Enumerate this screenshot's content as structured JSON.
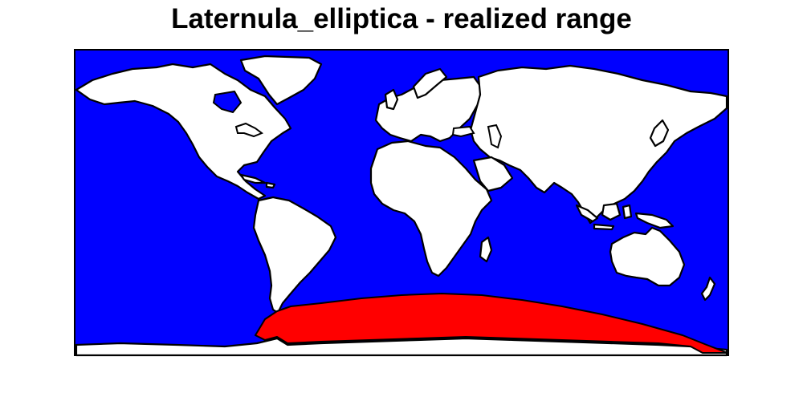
{
  "title": "Laternula_elliptica - realized range",
  "colors": {
    "ocean": "#0000ff",
    "land": "#ffffff",
    "range": "#ff0000",
    "outline": "#000000"
  },
  "map": {
    "projection": "equirectangular",
    "extent": {
      "lon": [
        -180,
        180
      ],
      "lat": [
        -90,
        90
      ]
    },
    "range_region": "Southern Ocean (circumpolar Antarctic waters)"
  }
}
